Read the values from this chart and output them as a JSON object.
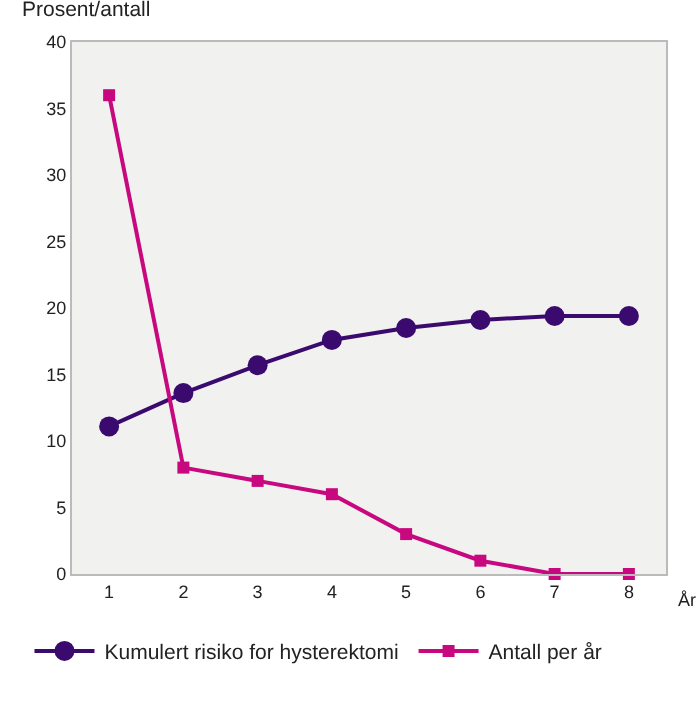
{
  "chart_data": {
    "type": "line",
    "ylabel": "Prosent/antall",
    "xlabel": "År",
    "categories": [
      "1",
      "2",
      "3",
      "4",
      "5",
      "6",
      "7",
      "8"
    ],
    "series": [
      {
        "name": "Kumulert risiko for hysterektomi",
        "color": "#3b0a6e",
        "marker": "circle",
        "values": [
          11.1,
          13.6,
          15.7,
          17.6,
          18.5,
          19.1,
          19.4,
          19.4
        ]
      },
      {
        "name": "Antall per år",
        "color": "#c8087f",
        "marker": "square",
        "values": [
          36,
          8,
          7,
          6,
          3,
          1,
          0,
          0
        ]
      }
    ],
    "ylim": [
      0,
      40
    ],
    "yticks": [
      0,
      5,
      10,
      15,
      20,
      25,
      30,
      35,
      40
    ],
    "grid": false,
    "legend": "bottom",
    "line_style": "solid"
  }
}
